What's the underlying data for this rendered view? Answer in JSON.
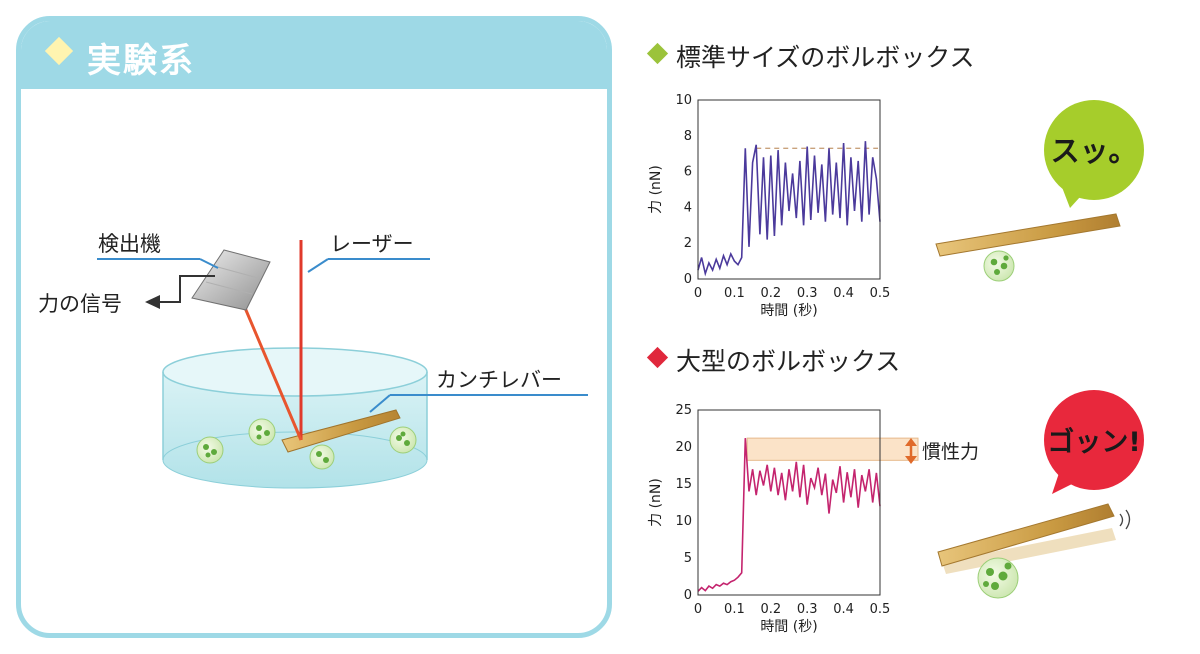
{
  "setup": {
    "title": "実験系",
    "labels": {
      "detector": "検出機",
      "laser": "レーザー",
      "force_signal": "力の信号",
      "cantilever": "カンチレバー"
    }
  },
  "sections": [
    {
      "title": "標準サイズのボルボックス",
      "diamond_color": "#9bc33b",
      "bubble_text": "スッ。",
      "bubble_color": "#a6cd2b"
    },
    {
      "title": "大型のボルボックス",
      "diamond_color": "#e0283c",
      "bubble_text": "ゴッン!",
      "bubble_color": "#e8283c",
      "annotation": "慣性力"
    }
  ],
  "chart_data": [
    {
      "type": "line",
      "xlabel": "時間 (秒)",
      "ylabel": "力 (nN)",
      "xlim": [
        0,
        0.5
      ],
      "ylim": [
        0,
        10
      ],
      "xticks": [
        "0",
        "0.1",
        "0.2",
        "0.3",
        "0.4",
        "0.5"
      ],
      "yticks": [
        "0",
        "2",
        "4",
        "6",
        "8",
        "10"
      ],
      "color": "#4b3a9c",
      "reference_line": 7.3,
      "series": [
        {
          "x": [
            0,
            0.01,
            0.02,
            0.03,
            0.04,
            0.05,
            0.06,
            0.07,
            0.08,
            0.09,
            0.1,
            0.11,
            0.12,
            0.13,
            0.14,
            0.15,
            0.16,
            0.17,
            0.18,
            0.19,
            0.2,
            0.21,
            0.22,
            0.23,
            0.24,
            0.25,
            0.26,
            0.27,
            0.28,
            0.29,
            0.3,
            0.31,
            0.32,
            0.33,
            0.34,
            0.35,
            0.36,
            0.37,
            0.38,
            0.39,
            0.4,
            0.41,
            0.42,
            0.43,
            0.44,
            0.45,
            0.46,
            0.47,
            0.48,
            0.49,
            0.5
          ],
          "y": [
            0.5,
            1.2,
            0.3,
            0.9,
            0.5,
            1.1,
            0.6,
            1.3,
            0.8,
            1.4,
            1.0,
            0.8,
            1.2,
            7.3,
            1.8,
            6.5,
            7.5,
            2.5,
            6.8,
            2.2,
            6.9,
            2.4,
            7.2,
            3.0,
            6.5,
            3.8,
            5.9,
            3.4,
            6.6,
            3.0,
            7.4,
            3.3,
            6.9,
            3.7,
            6.4,
            3.2,
            7.3,
            3.6,
            6.5,
            3.4,
            7.6,
            3.0,
            6.8,
            3.8,
            6.6,
            3.2,
            7.7,
            3.6,
            6.8,
            5.6,
            3.2
          ]
        }
      ]
    },
    {
      "type": "line",
      "xlabel": "時間 (秒)",
      "ylabel": "力 (nN)",
      "xlim": [
        0,
        0.5
      ],
      "ylim": [
        0,
        25
      ],
      "xticks": [
        "0",
        "0.1",
        "0.2",
        "0.3",
        "0.4",
        "0.5"
      ],
      "yticks": [
        "0",
        "5",
        "10",
        "15",
        "20",
        "25"
      ],
      "color": "#c4246e",
      "band": [
        18.2,
        21.2
      ],
      "series": [
        {
          "x": [
            0,
            0.01,
            0.02,
            0.03,
            0.04,
            0.05,
            0.06,
            0.07,
            0.08,
            0.09,
            0.1,
            0.11,
            0.12,
            0.13,
            0.14,
            0.15,
            0.16,
            0.17,
            0.18,
            0.19,
            0.2,
            0.21,
            0.22,
            0.23,
            0.24,
            0.25,
            0.26,
            0.27,
            0.28,
            0.29,
            0.3,
            0.31,
            0.32,
            0.33,
            0.34,
            0.35,
            0.36,
            0.37,
            0.38,
            0.39,
            0.4,
            0.41,
            0.42,
            0.43,
            0.44,
            0.45,
            0.46,
            0.47,
            0.48,
            0.49,
            0.5
          ],
          "y": [
            0.5,
            1.0,
            0.6,
            1.2,
            0.9,
            1.4,
            1.2,
            1.6,
            1.4,
            1.8,
            2.0,
            2.4,
            3.0,
            21.2,
            14.0,
            17.0,
            13.5,
            16.8,
            14.8,
            17.6,
            14.0,
            17.2,
            13.5,
            16.5,
            12.8,
            17.0,
            14.0,
            18.0,
            13.2,
            17.6,
            12.2,
            15.8,
            14.5,
            17.2,
            13.5,
            16.4,
            11.0,
            15.6,
            13.8,
            17.4,
            12.5,
            16.6,
            13.2,
            17.0,
            11.8,
            16.2,
            14.0,
            17.0,
            12.5,
            16.5,
            12.0
          ]
        }
      ]
    }
  ]
}
